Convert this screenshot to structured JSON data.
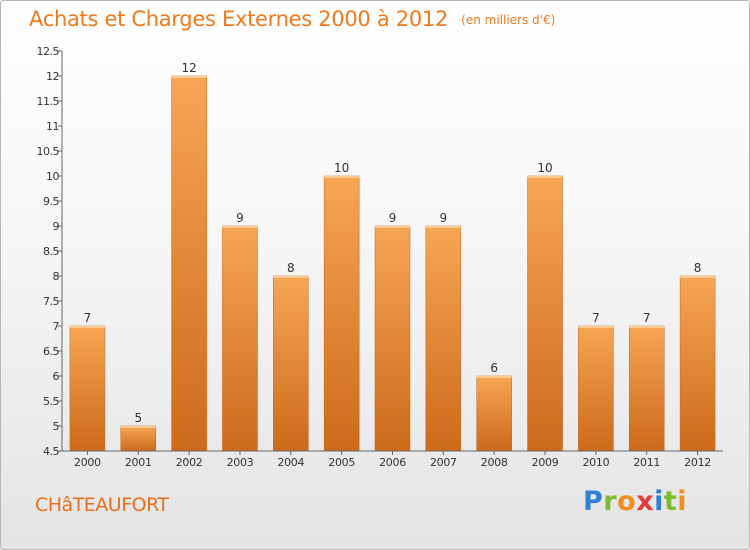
{
  "header": {
    "title": "Achats et Charges Externes 2000 à 2012",
    "subtitle": "(en milliers d'€)"
  },
  "footer": {
    "city": "CHâTEAUFORT",
    "logo": {
      "letters": [
        "P",
        "r",
        "o",
        "x",
        "i",
        "t",
        "i"
      ],
      "colors": [
        "#2e7fd6",
        "#7bbd2b",
        "#f28c1d",
        "#e23b3b",
        "#2e7fd6",
        "#7bbd2b",
        "#f28c1d"
      ]
    }
  },
  "chart_data": {
    "type": "bar",
    "title": "Achats et Charges Externes 2000 à 2012",
    "subtitle": "(en milliers d'€)",
    "categories": [
      "2000",
      "2001",
      "2002",
      "2003",
      "2004",
      "2005",
      "2006",
      "2007",
      "2008",
      "2009",
      "2010",
      "2011",
      "2012"
    ],
    "values": [
      7,
      5,
      12,
      9,
      8,
      10,
      9,
      9,
      6,
      10,
      7,
      7,
      8
    ],
    "ylim": [
      4.5,
      12.5
    ],
    "yticks": [
      "4.5",
      "5",
      "5.5",
      "6",
      "6.5",
      "7",
      "7.5",
      "8",
      "8.5",
      "9",
      "9.5",
      "10",
      "10.5",
      "11",
      "11.5",
      "12",
      "12.5"
    ],
    "xlabel": "",
    "ylabel": "",
    "grid": false,
    "legend": "none",
    "colors": {
      "bar_light": "#f6a655",
      "bar_dark": "#cc6a1a",
      "bar_edge": "#c26418",
      "text": "#333333",
      "axis": "#666666"
    }
  }
}
